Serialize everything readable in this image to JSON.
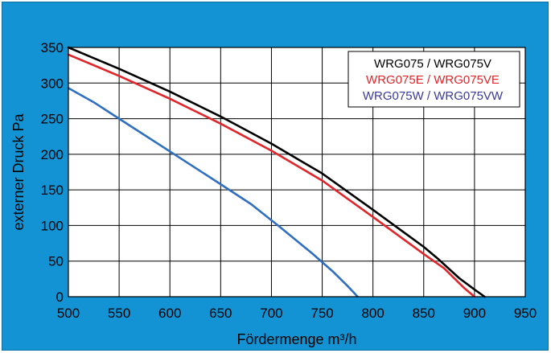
{
  "chart_data": {
    "type": "line",
    "title": "",
    "xlabel": "Fördermenge m³/h",
    "ylabel": "externer Druck Pa",
    "xlim": [
      500,
      950
    ],
    "ylim": [
      0,
      350
    ],
    "x_ticks": [
      500,
      550,
      600,
      650,
      700,
      750,
      800,
      850,
      900,
      950
    ],
    "y_ticks": [
      0,
      50,
      100,
      150,
      200,
      250,
      300,
      350
    ],
    "grid": true,
    "legend_position": "top-right",
    "colors": {
      "background": "#1393d4",
      "plot_background": "#ffffff",
      "grid": "#000000"
    },
    "series": [
      {
        "name": "WRG075  / WRG075V",
        "color": "#000000",
        "x": [
          500,
          550,
          600,
          650,
          700,
          750,
          800,
          850,
          865,
          885,
          900,
          910
        ],
        "y": [
          350,
          320,
          288,
          253,
          215,
          173,
          122,
          70,
          52,
          26,
          10,
          0
        ]
      },
      {
        "name": "WRG075E / WRG075VE",
        "color": "#e0252b",
        "x": [
          500,
          550,
          600,
          650,
          700,
          750,
          800,
          850,
          870,
          890,
          900
        ],
        "y": [
          340,
          310,
          278,
          243,
          205,
          163,
          112,
          60,
          40,
          12,
          0
        ]
      },
      {
        "name": "WRG075W / WRG075VW",
        "color": "#2e6fc2",
        "x": [
          500,
          525,
          550,
          600,
          650,
          680,
          710,
          740,
          760,
          775,
          785
        ],
        "y": [
          293,
          273,
          250,
          204,
          158,
          130,
          96,
          61,
          36,
          15,
          0
        ]
      }
    ],
    "legend_colors": [
      "#000000",
      "#e0252b",
      "#3a3a9a"
    ]
  }
}
